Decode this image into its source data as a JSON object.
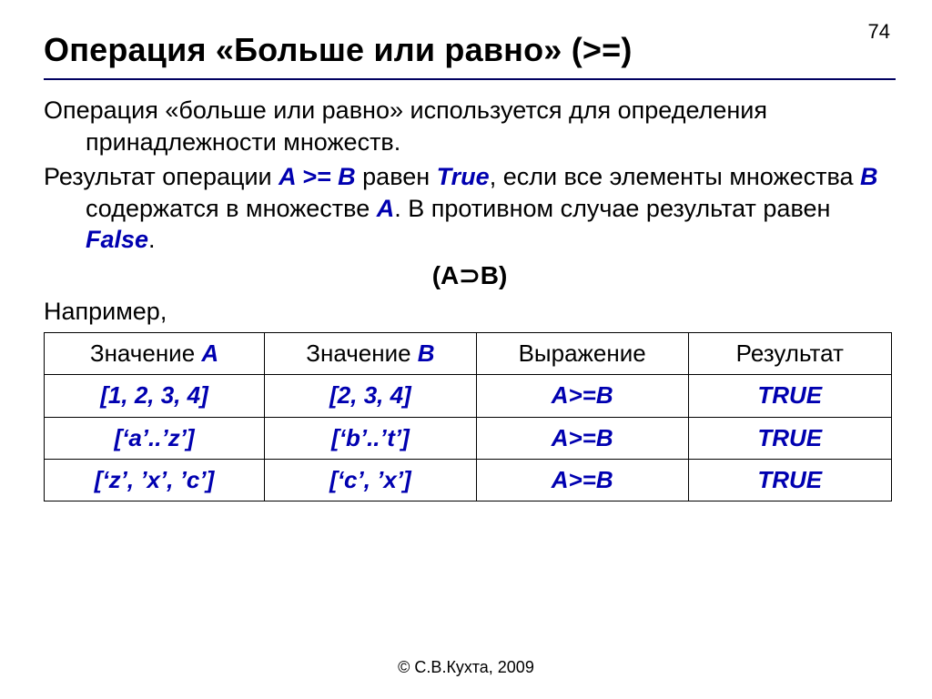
{
  "page_number": "74",
  "title": "Операция «Больше или равно» (>=)",
  "paragraphs": {
    "p1": "Операция «больше или равно» используется для определения принадлежности множеств.",
    "p2_a": "Результат операции ",
    "p2_AgeB": "A >= B",
    "p2_b": " равен ",
    "p2_true": "True",
    "p2_c": ", если все элементы множества ",
    "p2_B": "B",
    "p2_d": " содержатся в множестве ",
    "p2_A": "A",
    "p2_e": ". В противном случае результат равен ",
    "p2_false": "False",
    "p2_f": "."
  },
  "formula": "(A⊃B)",
  "example_label": "Например,",
  "table": {
    "headers": {
      "c1_pre": "Значение ",
      "c1_hl": "A",
      "c2_pre": "Значение ",
      "c2_hl": "B",
      "c3": "Выражение",
      "c4": "Результат"
    },
    "col_widths": [
      "26%",
      "25%",
      "25%",
      "24%"
    ],
    "rows": [
      {
        "a": "[1, 2, 3, 4]",
        "b": "[2, 3, 4]",
        "expr": "A>=B",
        "res": "TRUE"
      },
      {
        "a": "[‘a’..’z’]",
        "b": "[‘b’..’t’]",
        "expr": "A>=B",
        "res": "TRUE"
      },
      {
        "a": "[‘z’, ’x’, ’c’]",
        "b": "[‘c’, ’x’]",
        "expr": "A>=B",
        "res": "TRUE"
      }
    ]
  },
  "copyright": "© С.В.Кухта, 2009",
  "colors": {
    "blue": "#0000b0",
    "hr": "#000060",
    "background": "#ffffff",
    "text": "#000000"
  }
}
